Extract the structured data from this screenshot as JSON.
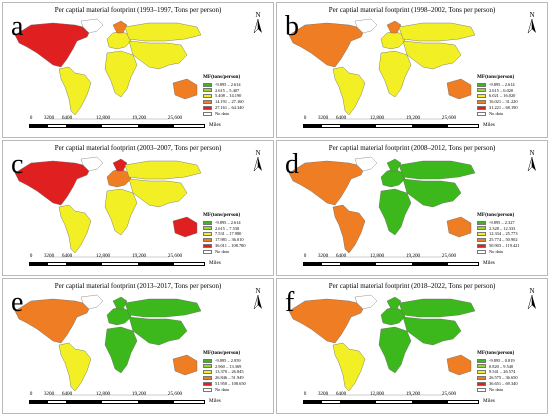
{
  "colors": {
    "green": "#3cb81c",
    "lightgreen": "#9bd62f",
    "yellow": "#f2ef25",
    "orange": "#ef7d24",
    "red": "#e02020",
    "nodata": "#ffffff"
  },
  "scale": {
    "labels": [
      "0",
      "3200",
      "6400",
      "12,800",
      "19,200",
      "25,600"
    ],
    "unit": "Miles"
  },
  "north_label": "N",
  "panels": [
    {
      "letter": "a",
      "title": "Per captial material footprint (1993–1997, Tons per person)",
      "legend_title": "MF(tons/person)",
      "legend": [
        "-9.895 – 2.614",
        "2.615 – 5.407",
        "5.408 – 14.190",
        "14.191 – 27.160",
        "27.161 – 64.340",
        "No data"
      ],
      "colors": {
        "na": "red",
        "la": "yellow",
        "eu": "yellow",
        "scan": "orange",
        "af": "yellow",
        "ru": "yellow",
        "as": "yellow",
        "au": "orange"
      }
    },
    {
      "letter": "b",
      "title": "Per captial material footprint (1998–2002, Tons per person)",
      "legend_title": "MF(tons/person)",
      "legend": [
        "-9.895 – 2.614",
        "2.615 – 6.020",
        "6.021 – 16.020",
        "16.021 – 31.220",
        "31.221 – 68.190",
        "No data"
      ],
      "colors": {
        "na": "orange",
        "la": "yellow",
        "eu": "yellow",
        "scan": "orange",
        "af": "yellow",
        "ru": "yellow",
        "as": "yellow",
        "au": "orange"
      }
    },
    {
      "letter": "c",
      "title": "Per captial material footprint (2003–2007, Tons per person)",
      "legend_title": "MF(tons/person)",
      "legend": [
        "-9.895 – 2.614",
        "2.615 – 7.530",
        "7.531 – 17.980",
        "17.981 – 36.010",
        "36.011 – 108.780",
        "No data"
      ],
      "colors": {
        "na": "red",
        "la": "yellow",
        "eu": "orange",
        "scan": "red",
        "af": "yellow",
        "ru": "yellow",
        "as": "yellow",
        "au": "red"
      }
    },
    {
      "letter": "d",
      "title": "Per captial material footprint (2008–2012, Tons per person)",
      "legend_title": "MF(tons/person)",
      "legend": [
        "-9.895 – 2.327",
        "2.328 – 12.333",
        "12.334 – 25.773",
        "25.774 – 50.902",
        "50.903 – 119.421",
        "No data"
      ],
      "colors": {
        "na": "orange",
        "la": "orange",
        "eu": "green",
        "scan": "green",
        "af": "green",
        "ru": "green",
        "as": "green",
        "au": "orange"
      }
    },
    {
      "letter": "e",
      "title": "Per captial material footprint (2013–2017, Tons per person)",
      "legend_title": "MF(tons/person)",
      "legend": [
        "-9.895 – 2.959",
        "2.960 – 13.369",
        "13.370 – 26.845",
        "26.846 – 51.949",
        "51.950 – 108.650",
        "No data"
      ],
      "colors": {
        "na": "orange",
        "la": "yellow",
        "eu": "green",
        "scan": "green",
        "af": "green",
        "ru": "green",
        "as": "green",
        "au": "orange"
      }
    },
    {
      "letter": "f",
      "title": "Per captial material footprint (2018–2022, Tons per person)",
      "legend_title": "MF(tons/person)",
      "legend": [
        "-9.895 – 0.819",
        "0.820 – 9.540",
        "9.541 – 26.574",
        "26.575 – 36.650",
        "36.651 – 69.340",
        "No data"
      ],
      "colors": {
        "na": "orange",
        "la": "yellow",
        "eu": "green",
        "scan": "green",
        "af": "green",
        "ru": "green",
        "as": "green",
        "au": "orange"
      }
    }
  ]
}
